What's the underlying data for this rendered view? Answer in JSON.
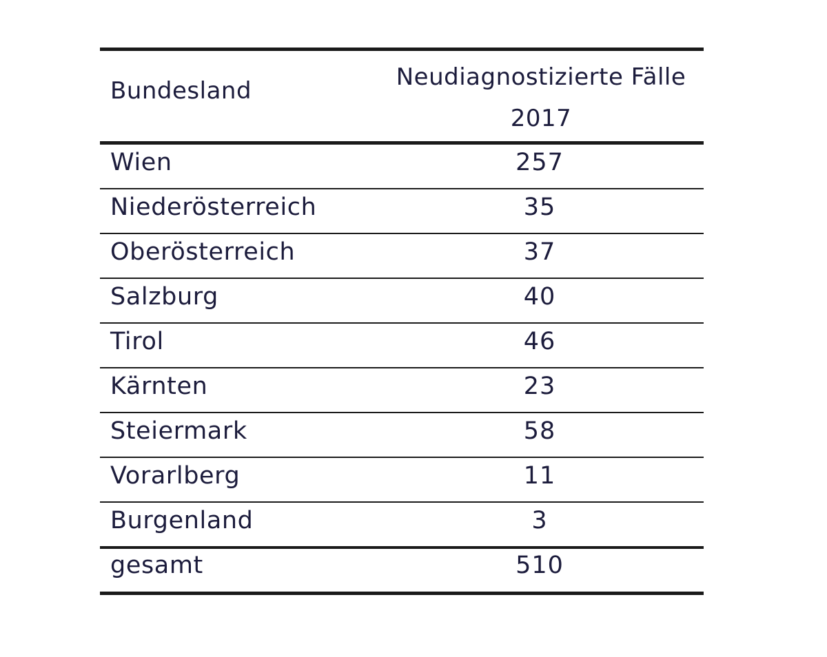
{
  "chart_data": {
    "type": "table",
    "columns": [
      "Bundesland",
      "Neudiagnostizierte Fälle",
      "2017"
    ],
    "rows": [
      {
        "label": "Wien",
        "value": 257
      },
      {
        "label": "Niederösterreich",
        "value": 35
      },
      {
        "label": "Oberösterreich",
        "value": 37
      },
      {
        "label": "Salzburg",
        "value": 40
      },
      {
        "label": "Tirol",
        "value": 46
      },
      {
        "label": "Kärnten",
        "value": 23
      },
      {
        "label": "Steiermark",
        "value": 58
      },
      {
        "label": "Vorarlberg",
        "value": 11
      },
      {
        "label": "Burgenland",
        "value": 3
      }
    ],
    "total": {
      "label": "gesamt",
      "value": 510
    }
  },
  "colors": {
    "text": "#1c1c3c",
    "rules": "#1a1a1a",
    "background": "#ffffff"
  }
}
